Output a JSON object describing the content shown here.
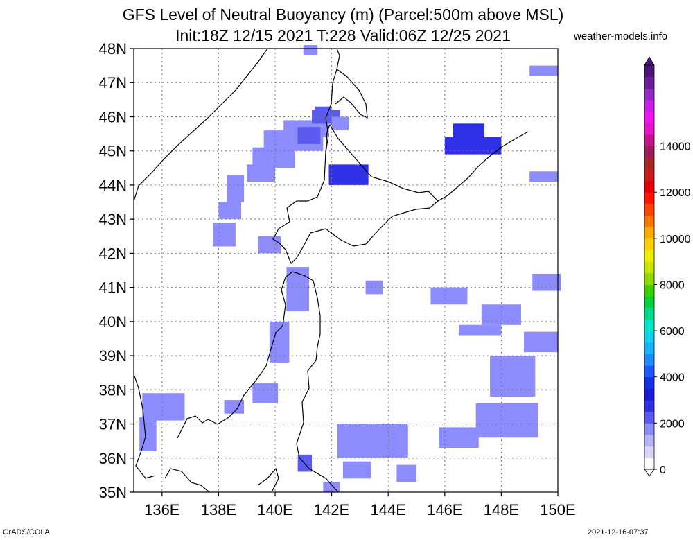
{
  "title_line1": "GFS Level of Neutral Buoyancy (m) (Parcel:500m above MSL)",
  "title_line2": "Init:18Z 12/15 2021 T:228 Valid:06Z 12/25 2021",
  "site": "weather-models.info",
  "footer_left": "GrADS/COLA",
  "footer_right": "2021-12-16-07:37",
  "map": {
    "lon_range": [
      135,
      150
    ],
    "lat_range": [
      35,
      48
    ],
    "lat_labels": [
      "35N",
      "36N",
      "37N",
      "38N",
      "39N",
      "40N",
      "41N",
      "42N",
      "43N",
      "44N",
      "45N",
      "46N",
      "47N",
      "48N"
    ],
    "lon_labels": [
      "136E",
      "138E",
      "140E",
      "142E",
      "144E",
      "146E",
      "148E",
      "150E"
    ],
    "lon_ticks": [
      136,
      138,
      140,
      142,
      144,
      146,
      148,
      150
    ]
  },
  "colorbar": {
    "labels": [
      "0",
      "2000",
      "4000",
      "6000",
      "8000",
      "10000",
      "12000",
      "14000"
    ],
    "colors": [
      "#ffffff",
      "#d8d8ff",
      "#b4b4ff",
      "#8c8cff",
      "#5a5af0",
      "#2f2fe6",
      "#1a1ad2",
      "#1430e6",
      "#1e5aff",
      "#1e8cff",
      "#18b4ff",
      "#12d2f0",
      "#00e6c8",
      "#00dc8c",
      "#00d23c",
      "#3cd200",
      "#8cdc00",
      "#c8e600",
      "#f0f000",
      "#ffd200",
      "#ffaa00",
      "#ff7800",
      "#ff4600",
      "#ff1400",
      "#e60000",
      "#c81e1e",
      "#a82828",
      "#9c1e5a",
      "#c8148c",
      "#e614c8",
      "#f014f0",
      "#c81ee6",
      "#9628c8",
      "#6e1e9c",
      "#4b1478"
    ]
  },
  "field": [
    {
      "lon": 141,
      "lat": 47.8,
      "w": 0.5,
      "h": 0.3,
      "v": 1700
    },
    {
      "lon": 149,
      "lat": 47.2,
      "w": 1,
      "h": 0.3,
      "v": 1700
    },
    {
      "lon": 141.4,
      "lat": 45.8,
      "w": 0.6,
      "h": 0.5,
      "v": 2200
    },
    {
      "lon": 140.3,
      "lat": 45.4,
      "w": 1.6,
      "h": 0.5,
      "v": 1600
    },
    {
      "lon": 139.6,
      "lat": 45.0,
      "w": 2.1,
      "h": 0.6,
      "v": 1800
    },
    {
      "lon": 140.8,
      "lat": 45.2,
      "w": 0.8,
      "h": 0.5,
      "v": 2400
    },
    {
      "lon": 139.2,
      "lat": 44.5,
      "w": 1.5,
      "h": 0.6,
      "v": 1800
    },
    {
      "lon": 139.0,
      "lat": 44.1,
      "w": 1.0,
      "h": 0.5,
      "v": 1700
    },
    {
      "lon": 138.3,
      "lat": 43.5,
      "w": 0.6,
      "h": 0.8,
      "v": 1700
    },
    {
      "lon": 138.0,
      "lat": 43.0,
      "w": 0.8,
      "h": 0.5,
      "v": 1700
    },
    {
      "lon": 137.8,
      "lat": 42.2,
      "w": 0.8,
      "h": 0.7,
      "v": 1700
    },
    {
      "lon": 139.4,
      "lat": 42.0,
      "w": 0.8,
      "h": 0.5,
      "v": 1700
    },
    {
      "lon": 141.9,
      "lat": 44.0,
      "w": 1.4,
      "h": 0.6,
      "v": 2900
    },
    {
      "lon": 141.3,
      "lat": 45.8,
      "w": 1.0,
      "h": 0.4,
      "v": 2400
    },
    {
      "lon": 142.0,
      "lat": 45.6,
      "w": 0.6,
      "h": 0.4,
      "v": 1800
    },
    {
      "lon": 146.0,
      "lat": 44.9,
      "w": 2.0,
      "h": 0.5,
      "v": 2800
    },
    {
      "lon": 146.3,
      "lat": 45.3,
      "w": 1.1,
      "h": 0.5,
      "v": 2500
    },
    {
      "lon": 149.0,
      "lat": 44.1,
      "w": 1.0,
      "h": 0.3,
      "v": 1900
    },
    {
      "lon": 140.4,
      "lat": 40.3,
      "w": 0.8,
      "h": 1.3,
      "v": 1900
    },
    {
      "lon": 139.8,
      "lat": 38.8,
      "w": 0.7,
      "h": 1.2,
      "v": 1800
    },
    {
      "lon": 139.2,
      "lat": 37.6,
      "w": 0.9,
      "h": 0.6,
      "v": 1700
    },
    {
      "lon": 135.3,
      "lat": 37.1,
      "w": 1.5,
      "h": 0.8,
      "v": 1900
    },
    {
      "lon": 135.2,
      "lat": 36.2,
      "w": 0.6,
      "h": 1.0,
      "v": 1700
    },
    {
      "lon": 138.2,
      "lat": 37.3,
      "w": 0.7,
      "h": 0.4,
      "v": 1700
    },
    {
      "lon": 143.2,
      "lat": 40.8,
      "w": 0.6,
      "h": 0.4,
      "v": 1700
    },
    {
      "lon": 145.5,
      "lat": 40.5,
      "w": 1.3,
      "h": 0.5,
      "v": 1600
    },
    {
      "lon": 147.3,
      "lat": 39.9,
      "w": 1.4,
      "h": 0.6,
      "v": 1700
    },
    {
      "lon": 146.5,
      "lat": 39.6,
      "w": 1.5,
      "h": 0.3,
      "v": 1700
    },
    {
      "lon": 149.1,
      "lat": 40.9,
      "w": 1.0,
      "h": 0.5,
      "v": 1700
    },
    {
      "lon": 148.8,
      "lat": 39.1,
      "w": 1.2,
      "h": 0.6,
      "v": 1700
    },
    {
      "lon": 147.6,
      "lat": 37.8,
      "w": 1.6,
      "h": 1.2,
      "v": 1700
    },
    {
      "lon": 147.1,
      "lat": 36.6,
      "w": 2.2,
      "h": 1.0,
      "v": 1700
    },
    {
      "lon": 145.8,
      "lat": 36.3,
      "w": 1.4,
      "h": 0.6,
      "v": 1700
    },
    {
      "lon": 142.2,
      "lat": 36.0,
      "w": 2.5,
      "h": 1.0,
      "v": 1600
    },
    {
      "lon": 142.4,
      "lat": 35.4,
      "w": 1.0,
      "h": 0.5,
      "v": 1700
    },
    {
      "lon": 144.3,
      "lat": 35.3,
      "w": 0.7,
      "h": 0.5,
      "v": 1700
    },
    {
      "lon": 141.7,
      "lat": 35.0,
      "w": 0.6,
      "h": 0.3,
      "v": 1700
    },
    {
      "lon": 140.8,
      "lat": 35.6,
      "w": 0.5,
      "h": 0.5,
      "v": 2000
    }
  ]
}
